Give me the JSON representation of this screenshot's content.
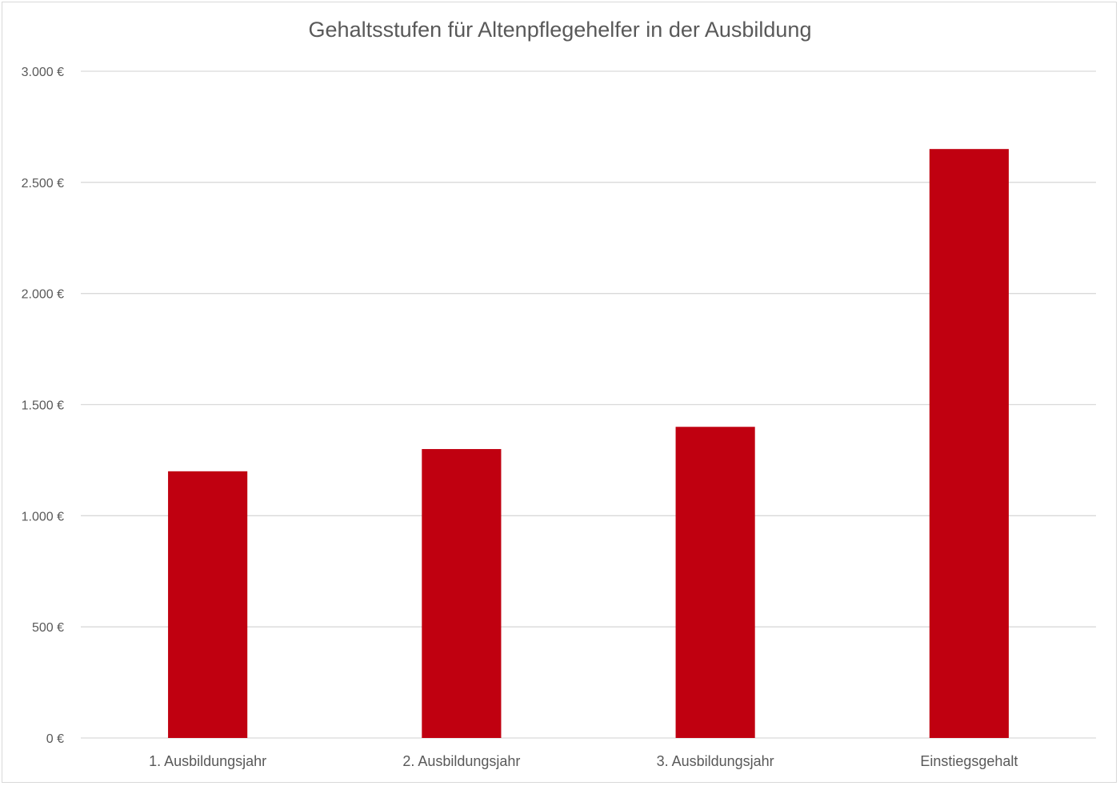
{
  "chart_data": {
    "type": "bar",
    "title": "Gehaltsstufen für Altenpflegehelfer in der Ausbildung",
    "xlabel": "",
    "ylabel": "",
    "categories": [
      "1. Ausbildungsjahr",
      "2. Ausbildungsjahr",
      "3. Ausbildungsjahr",
      "Einstiegsgehalt"
    ],
    "values": [
      1200,
      1300,
      1400,
      2650
    ],
    "ylim": [
      0,
      3000
    ],
    "yticks": [
      0,
      500,
      1000,
      1500,
      2000,
      2500,
      3000
    ],
    "ytick_labels": [
      "0 €",
      "500 €",
      "1.000 €",
      "1.500 €",
      "2.000 €",
      "2.500 €",
      "3.000 €"
    ],
    "grid": true,
    "legend": "none",
    "bar_color": "#c00010"
  }
}
